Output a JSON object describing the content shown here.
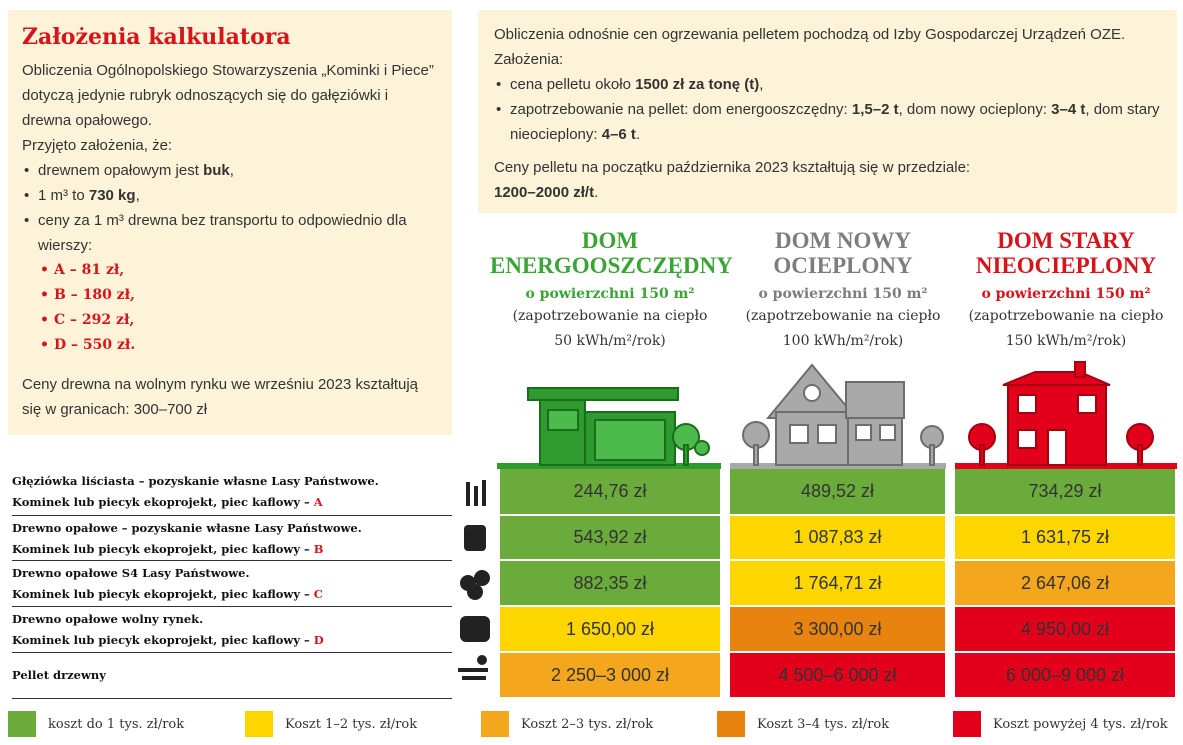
{
  "assumptions": {
    "title": "Założenia kalkulatora",
    "intro": "Obliczenia Ogólnopolskiego Stowarzyszenia „Kominki i Piece” dotyczą jedynie rubryk odnoszących się do gałęziówki i drewna opałowego.",
    "lead": "Przyjęto założenia, że:",
    "items": [
      [
        "drewnem opałowym jest ",
        "buk",
        ","
      ],
      [
        "1 m³ to ",
        "730 kg",
        ","
      ],
      [
        "ceny za 1 m³ drewna bez transportu to odpowiednio dla wierszy:"
      ]
    ],
    "prices": [
      "A – 81 zł,",
      "B – 180 zł,",
      "C – 292 zł,",
      "D – 550 zł."
    ],
    "market": "Ceny drewna na wolnym rynku we wrześniu 2023 kształtują się w granicach: 300–700 zł"
  },
  "pellet": {
    "intro": "Obliczenia odnośnie cen ogrzewania pelletem pochodzą od Izby Gospodarczej Urządzeń OZE. Założenia:",
    "items": [
      [
        "cena pelletu około ",
        "1500 zł za tonę (t)",
        ","
      ],
      [
        "zapotrzebowanie na pellet: dom energooszczędny: ",
        "1,5–2 t",
        ", dom nowy ocieplony: ",
        "3–4 t",
        ", dom stary nieocieplony: ",
        "4–6 t",
        "."
      ]
    ],
    "note": [
      "Ceny pelletu na początku października 2023 kształtują się w przedziale: ",
      "1200–2000 zł/t",
      "."
    ]
  },
  "columns": [
    {
      "title": "DOM ENERGOOSZCZĘDNY",
      "area": "o powierzchni 150 m²",
      "demand": "(zapotrzebowanie na ciepło 50 kWh/m²/rok)"
    },
    {
      "title": "DOM NOWY OCIEPLONY",
      "area": "o powierzchni 150 m²",
      "demand": "(zapotrzebowanie na ciepło 100 kWh/m²/rok)"
    },
    {
      "title": "DOM STARY NIEOCIEPLONY",
      "area": "o powierzchni 150 m²",
      "demand": "(zapotrzebowanie na ciepło 150 kWh/m²/rok)"
    }
  ],
  "rows": [
    {
      "label": [
        "Głęziówka liściasta – pozyskanie własne Lasy Państwowe.",
        "Kominek lub piecyk ekoprojekt, piec kaflowy – ",
        "A"
      ],
      "values": [
        "244,76 zł",
        "489,52 zł",
        "734,29 zł"
      ]
    },
    {
      "label": [
        "Drewno opałowe – pozyskanie własne Lasy Państwowe.",
        "Kominek lub piecyk ekoprojekt, piec kaflowy – ",
        "B"
      ],
      "values": [
        "543,92 zł",
        "1 087,83 zł",
        "1 631,75 zł"
      ]
    },
    {
      "label": [
        "Drewno opałowe S4 Lasy Państwowe.",
        "Kominek lub piecyk ekoprojekt, piec kaflowy – ",
        "C"
      ],
      "values": [
        "882,35 zł",
        "1 764,71 zł",
        "2 647,06 zł"
      ]
    },
    {
      "label": [
        "Drewno opałowe wolny rynek.",
        "Kominek lub piecyk ekoprojekt, piec kaflowy – ",
        "D"
      ],
      "values": [
        "1 650,00 zł",
        "3 300,00 zł",
        "4 950,00 zł"
      ]
    },
    {
      "label": [
        "Pellet drzewny"
      ],
      "values": [
        "2 250–3 000 zł",
        "4 500–6 000 zł",
        "6 000–9 000 zł"
      ]
    }
  ],
  "legend": [
    {
      "color": "#6aab3c",
      "label": "koszt do 1 tys. zł/rok"
    },
    {
      "color": "#fdd600",
      "label": "Koszt 1–2 tys. zł/rok"
    },
    {
      "color": "#f4a61c",
      "label": "Koszt 2–3 tys. zł/rok"
    },
    {
      "color": "#e9830f",
      "label": "Koszt 3–4 tys. zł/rok"
    },
    {
      "color": "#e2001a",
      "label": "Koszt powyżej 4 tys. zł/rok"
    }
  ]
}
